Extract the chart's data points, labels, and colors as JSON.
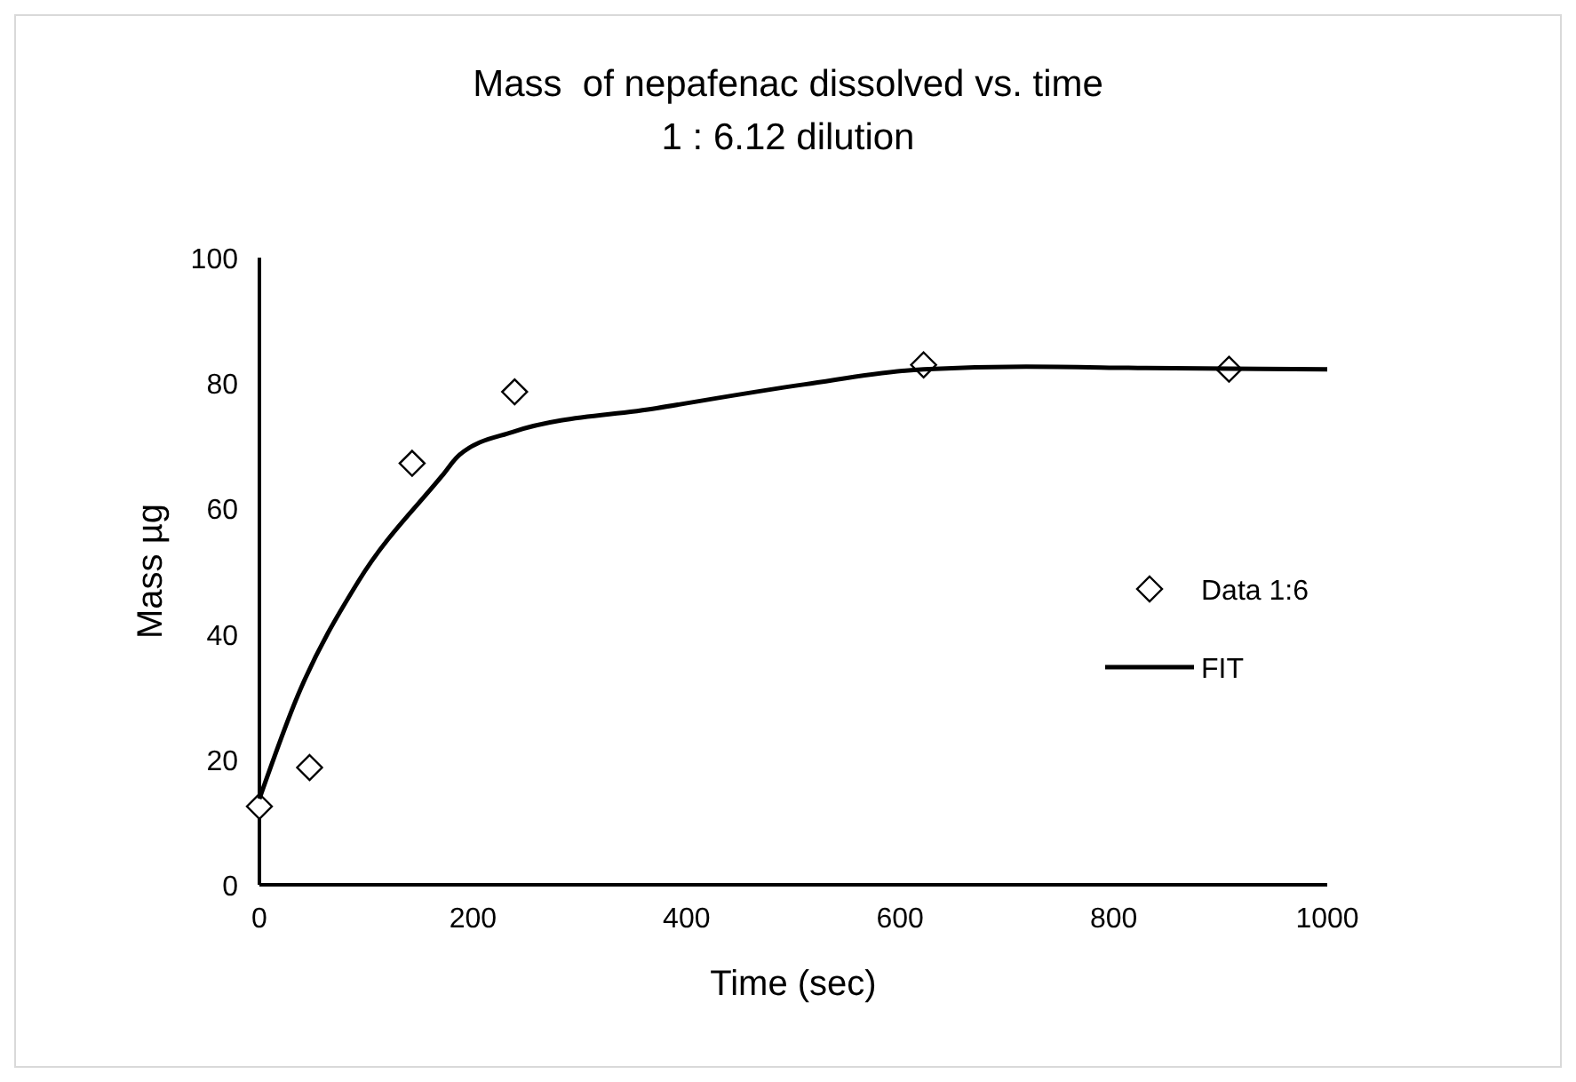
{
  "chart_data": {
    "type": "scatter",
    "title": "Mass  of nepafenac dissolved vs. time",
    "subtitle": "1 : 6.12 dilution",
    "xlabel": "Time (sec)",
    "ylabel": "Mass µg",
    "xlim": [
      0,
      1000
    ],
    "xticks": [
      0,
      200,
      400,
      600,
      800,
      1000
    ],
    "ylim": [
      0,
      100
    ],
    "yticks": [
      0,
      20,
      40,
      60,
      80,
      100
    ],
    "grid": false,
    "legend": "right",
    "series": [
      {
        "name": "Data 1:6",
        "marker": "diamond",
        "color": "#000000",
        "x": [
          0,
          47,
          143,
          239,
          622,
          908
        ],
        "values": [
          12.5,
          18.7,
          67.2,
          78.6,
          82.9,
          82.2
        ]
      },
      {
        "name": "FIT",
        "type": "line",
        "marker": "none",
        "line_style": "solid",
        "color": "#000000",
        "x": [
          0,
          36,
          92,
          171,
          187,
          237,
          372,
          511,
          622,
          718,
          830,
          1000
        ],
        "values": [
          13.7,
          30.2,
          48.2,
          65.2,
          68.5,
          72.2,
          76,
          79.8,
          82.2,
          82.6,
          82.4,
          82.2
        ]
      }
    ]
  }
}
